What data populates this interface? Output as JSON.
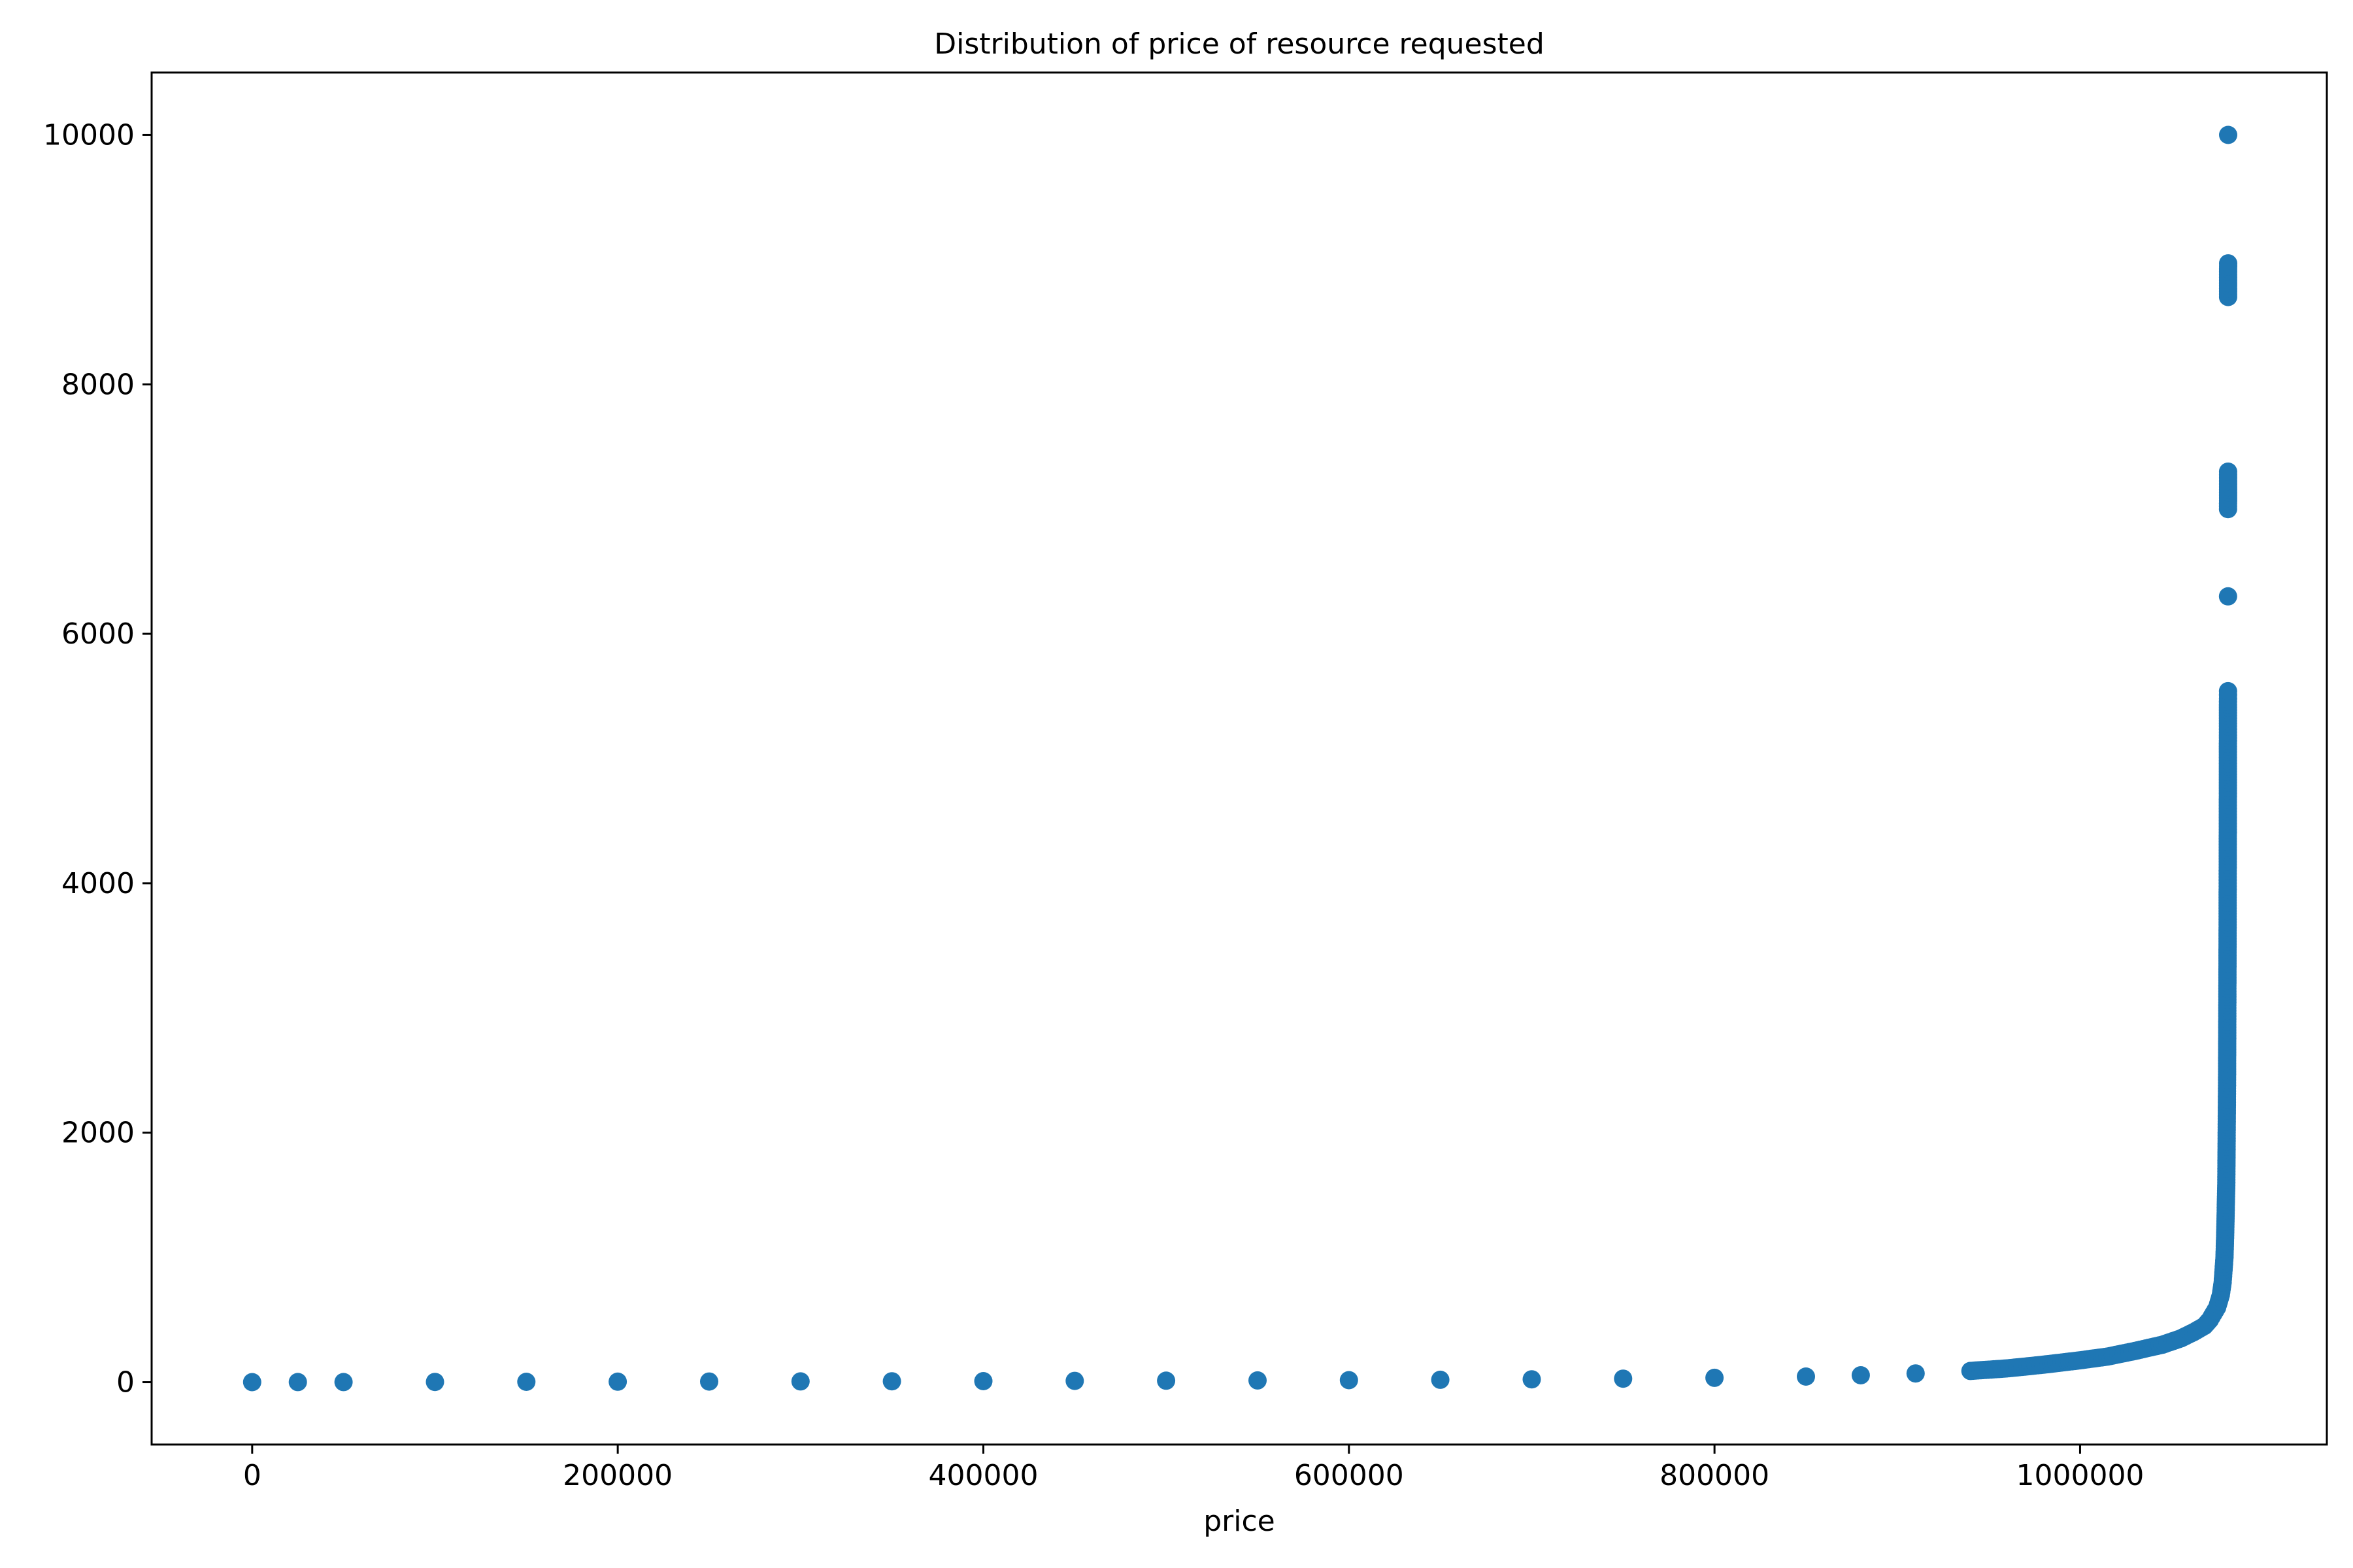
{
  "chart_data": {
    "type": "scatter",
    "title": "Distribution of price of resource requested",
    "xlabel": "price",
    "ylabel": "",
    "xlim": [
      -55000,
      1135000
    ],
    "ylim": [
      -500,
      10500
    ],
    "xticks": [
      0,
      200000,
      400000,
      600000,
      800000,
      1000000
    ],
    "yticks": [
      0,
      2000,
      4000,
      6000,
      8000,
      10000
    ],
    "grid": false,
    "legend": "none",
    "marker_color": "#1f77b4",
    "series": [
      {
        "points": [
          [
            0,
            0
          ],
          [
            25000,
            1
          ],
          [
            50000,
            1
          ],
          [
            100000,
            2
          ],
          [
            150000,
            3
          ],
          [
            200000,
            4
          ],
          [
            250000,
            5
          ],
          [
            300000,
            6
          ],
          [
            350000,
            7
          ],
          [
            400000,
            8
          ],
          [
            450000,
            10
          ],
          [
            500000,
            12
          ],
          [
            550000,
            14
          ],
          [
            600000,
            16
          ],
          [
            650000,
            19
          ],
          [
            700000,
            23
          ],
          [
            750000,
            28
          ],
          [
            800000,
            35
          ],
          [
            850000,
            45
          ],
          [
            880000,
            55
          ],
          [
            910000,
            70
          ],
          [
            940000,
            90
          ],
          [
            960000,
            110
          ],
          [
            980000,
            140
          ],
          [
            1000000,
            175
          ],
          [
            1015000,
            205
          ],
          [
            1030000,
            250
          ],
          [
            1045000,
            300
          ],
          [
            1055000,
            350
          ],
          [
            1062000,
            400
          ],
          [
            1068000,
            450
          ],
          [
            1071000,
            500
          ],
          [
            1073000,
            550
          ],
          [
            1075000,
            600
          ],
          [
            1076000,
            650
          ],
          [
            1077000,
            700
          ],
          [
            1078000,
            800
          ],
          [
            1078500,
            900
          ],
          [
            1079000,
            1000
          ],
          [
            1079400,
            1200
          ],
          [
            1079700,
            1400
          ],
          [
            1080000,
            1600
          ],
          [
            1080100,
            1800
          ],
          [
            1080200,
            2000
          ],
          [
            1080300,
            2200
          ],
          [
            1080400,
            2400
          ],
          [
            1080450,
            2600
          ],
          [
            1080500,
            2800
          ],
          [
            1080550,
            3000
          ],
          [
            1080600,
            3200
          ],
          [
            1080650,
            3400
          ],
          [
            1080700,
            3600
          ],
          [
            1080720,
            3800
          ],
          [
            1080740,
            3950
          ],
          [
            1080760,
            4050
          ],
          [
            1080780,
            4150
          ],
          [
            1080800,
            4380
          ],
          [
            1080820,
            4430
          ],
          [
            1080830,
            4550
          ],
          [
            1080840,
            4650
          ],
          [
            1080850,
            4720
          ],
          [
            1080860,
            4960
          ],
          [
            1080870,
            5030
          ],
          [
            1080880,
            5120
          ],
          [
            1080890,
            5210
          ],
          [
            1080900,
            5260
          ],
          [
            1080910,
            5430
          ],
          [
            1080920,
            5480
          ],
          [
            1080930,
            5540
          ],
          [
            1080940,
            6300
          ],
          [
            1080950,
            7000
          ],
          [
            1080960,
            7200
          ],
          [
            1080970,
            7300
          ],
          [
            1080980,
            8700
          ],
          [
            1080990,
            8970
          ],
          [
            1081000,
            10000
          ]
        ]
      }
    ]
  }
}
